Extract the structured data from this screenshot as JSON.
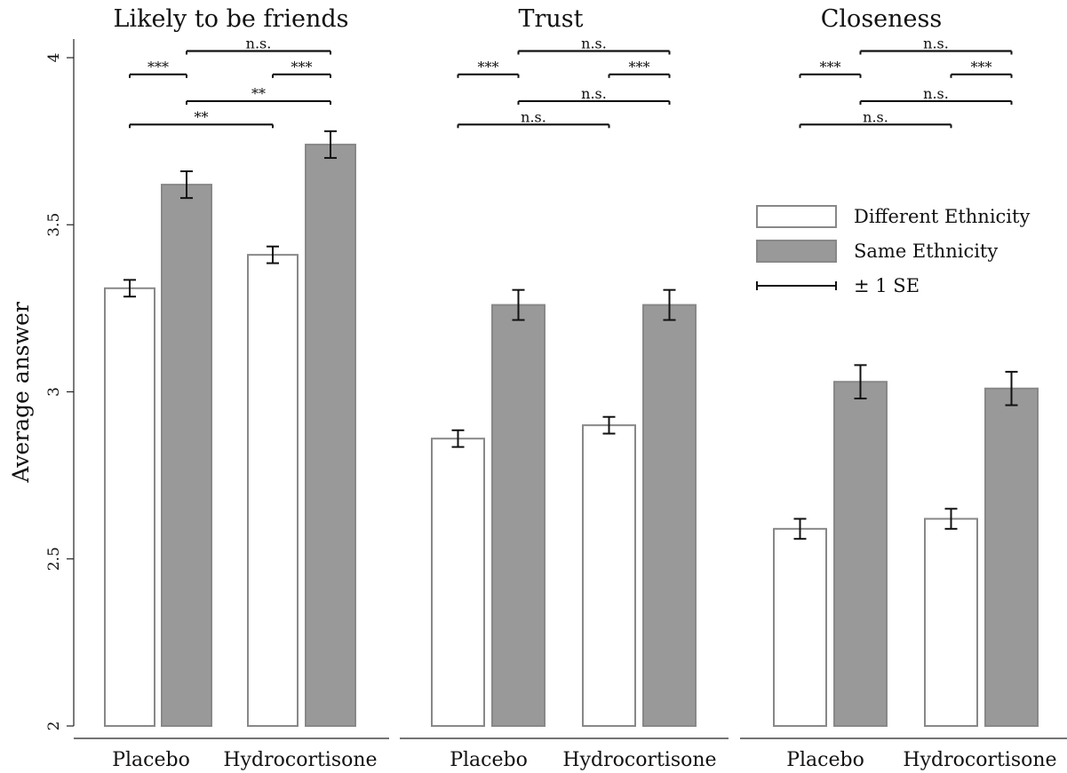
{
  "chart_data": {
    "type": "bar",
    "ylabel": "Average answer",
    "ylim": [
      2,
      4
    ],
    "yticks": [
      2,
      2.5,
      3,
      3.5,
      4
    ],
    "ytick_labels": [
      "2",
      "2.5",
      "3",
      "3.5",
      "4"
    ],
    "legend": {
      "position": "right",
      "items": [
        {
          "label": "Different Ethnicity",
          "type": "bar",
          "fill": "#ffffff",
          "stroke": "#888888"
        },
        {
          "label": "Same Ethnicity",
          "type": "bar",
          "fill": "#999999",
          "stroke": "#888888"
        },
        {
          "label": "± 1 SE",
          "type": "errorbar",
          "stroke": "#111111"
        }
      ]
    },
    "series_colors": {
      "Different Ethnicity": "#ffffff",
      "Same Ethnicity": "#999999"
    },
    "panels": [
      {
        "title": "Likely to be friends",
        "categories": [
          "Placebo",
          "Hydrocortisone"
        ],
        "series": [
          {
            "name": "Different Ethnicity",
            "values": [
              3.31,
              3.41
            ],
            "se": [
              0.025,
              0.025
            ]
          },
          {
            "name": "Same Ethnicity",
            "values": [
              3.62,
              3.74
            ],
            "se": [
              0.04,
              0.04
            ]
          }
        ],
        "comparisons": [
          {
            "from": 1,
            "to": 3,
            "y": 4.02,
            "label": "n.s."
          },
          {
            "from": 0,
            "to": 1,
            "y": 3.95,
            "label": "***"
          },
          {
            "from": 2,
            "to": 3,
            "y": 3.95,
            "label": "***"
          },
          {
            "from": 1,
            "to": 3,
            "y": 3.87,
            "label": "**"
          },
          {
            "from": 0,
            "to": 2,
            "y": 3.8,
            "label": "**"
          }
        ]
      },
      {
        "title": "Trust",
        "categories": [
          "Placebo",
          "Hydrocortisone"
        ],
        "series": [
          {
            "name": "Different Ethnicity",
            "values": [
              2.86,
              2.9
            ],
            "se": [
              0.025,
              0.025
            ]
          },
          {
            "name": "Same Ethnicity",
            "values": [
              3.26,
              3.26
            ],
            "se": [
              0.045,
              0.045
            ]
          }
        ],
        "comparisons": [
          {
            "from": 1,
            "to": 3,
            "y": 4.02,
            "label": "n.s."
          },
          {
            "from": 0,
            "to": 1,
            "y": 3.95,
            "label": "***"
          },
          {
            "from": 2,
            "to": 3,
            "y": 3.95,
            "label": "***"
          },
          {
            "from": 1,
            "to": 3,
            "y": 3.87,
            "label": "n.s."
          },
          {
            "from": 0,
            "to": 2,
            "y": 3.8,
            "label": "n.s."
          }
        ]
      },
      {
        "title": "Closeness",
        "categories": [
          "Placebo",
          "Hydrocortisone"
        ],
        "series": [
          {
            "name": "Different Ethnicity",
            "values": [
              2.59,
              2.62
            ],
            "se": [
              0.03,
              0.03
            ]
          },
          {
            "name": "Same Ethnicity",
            "values": [
              3.03,
              3.01
            ],
            "se": [
              0.05,
              0.05
            ]
          }
        ],
        "comparisons": [
          {
            "from": 1,
            "to": 3,
            "y": 4.02,
            "label": "n.s."
          },
          {
            "from": 0,
            "to": 1,
            "y": 3.95,
            "label": "***"
          },
          {
            "from": 2,
            "to": 3,
            "y": 3.95,
            "label": "***"
          },
          {
            "from": 1,
            "to": 3,
            "y": 3.87,
            "label": "n.s."
          },
          {
            "from": 0,
            "to": 2,
            "y": 3.8,
            "label": "n.s."
          }
        ]
      }
    ]
  }
}
